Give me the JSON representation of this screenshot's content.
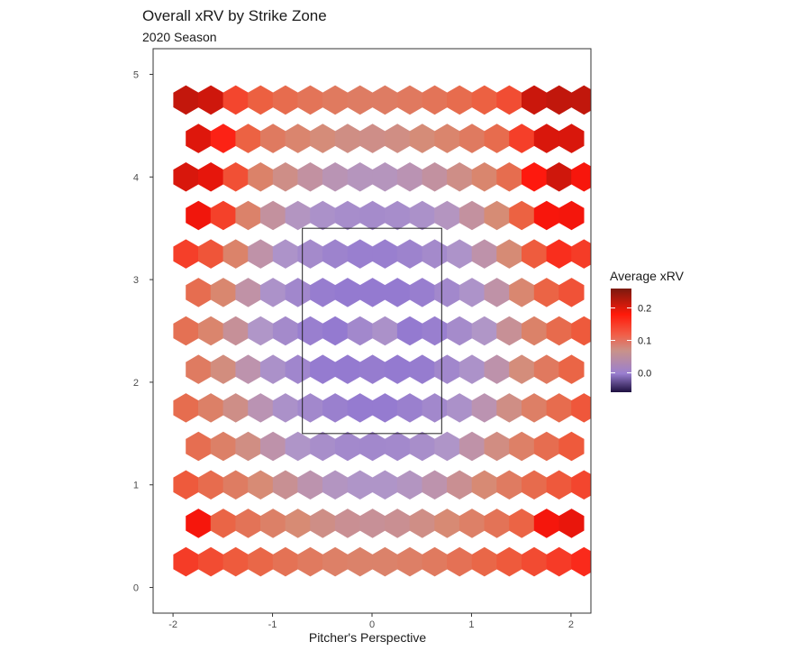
{
  "chart_data": {
    "type": "heatmap",
    "subtype": "hexbin",
    "title": "Overall xRV by Strike Zone",
    "subtitle": "2020 Season",
    "xlabel": "Pitcher's Perspective",
    "ylabel": "",
    "xlim": [
      -2.2,
      2.2
    ],
    "ylim": [
      -0.25,
      5.25
    ],
    "x_ticks": [
      -2,
      -1,
      0,
      1,
      2
    ],
    "x_tick_labels": [
      "-2",
      "-1",
      "0",
      "1",
      "2"
    ],
    "y_ticks": [
      0,
      1,
      2,
      3,
      4,
      5
    ],
    "y_tick_labels": [
      "0",
      "1",
      "2",
      "3",
      "4",
      "5"
    ],
    "strike_zone": {
      "x_min": -0.7,
      "x_max": 0.7,
      "y_min": 1.5,
      "y_max": 3.5
    },
    "hex_grid": {
      "x_min": -1.87,
      "x_max": 2.03,
      "x_step": 0.25,
      "y_min": 0.25,
      "y_max": 5.0,
      "y_step": 0.1
    },
    "value_range": [
      -0.06,
      0.26
    ],
    "legend": {
      "title": "Average xRV",
      "tick_values": [
        0.2,
        0.1,
        0.0
      ],
      "tick_labels": [
        "0.2",
        "0.1",
        "0.0"
      ],
      "colors": [
        "#201040",
        "#9a7fd0",
        "#e8765a",
        "#ff1a0a",
        "#8b1a0a"
      ]
    },
    "colors": {
      "zone_low": "#9178cf",
      "neutral": "#d98c6e",
      "high": "#ff1010",
      "panel_border": "#333333"
    }
  }
}
